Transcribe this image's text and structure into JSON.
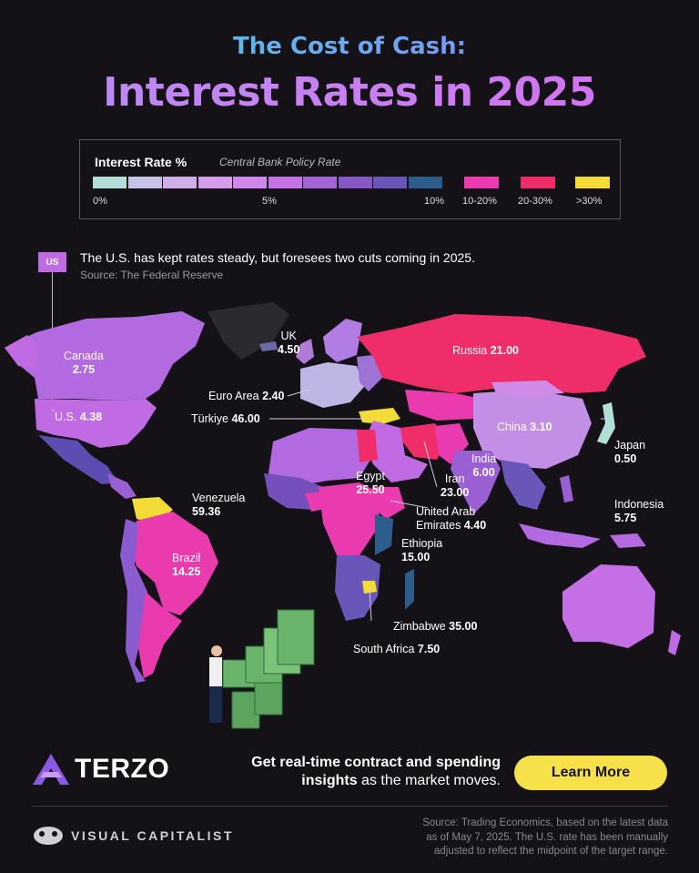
{
  "title": {
    "line1": "The Cost of Cash:",
    "line2": "Interest Rates in 2025"
  },
  "legend": {
    "title": "Interest Rate %",
    "subtitle": "Central Bank Policy Rate",
    "scale_colors": [
      "#b4dfd8",
      "#c6c3e6",
      "#cfaee9",
      "#d59cec",
      "#d087ec",
      "#c472e6",
      "#a565d7",
      "#8757c5",
      "#6a56b8",
      "#2c5d8c"
    ],
    "ticks": [
      "0%",
      "5%",
      "10%"
    ],
    "categories": [
      {
        "label": "10-20%",
        "color": "#ea3bb0"
      },
      {
        "label": "20-30%",
        "color": "#ee2d69"
      },
      {
        "label": ">30%",
        "color": "#f4dc38"
      }
    ]
  },
  "note": {
    "tag": "US",
    "text": "The U.S. has kept rates steady, but foresees two cuts coming in 2025.",
    "source": "Source: The Federal Reserve"
  },
  "countries": [
    {
      "name": "Canada",
      "rate": "2.75"
    },
    {
      "name": "UK",
      "rate": "4.50"
    },
    {
      "name": "Russia",
      "rate": "21.00"
    },
    {
      "name": "Euro Area",
      "rate": "2.40"
    },
    {
      "name": "U.S.",
      "rate": "4.38"
    },
    {
      "name": "Türkiye",
      "rate": "46.00"
    },
    {
      "name": "China",
      "rate": "3.10"
    },
    {
      "name": "Japan",
      "rate": "0.50"
    },
    {
      "name": "India",
      "rate": "6.00"
    },
    {
      "name": "Egypt",
      "rate": "25.50"
    },
    {
      "name": "Iran",
      "rate": "23.00"
    },
    {
      "name": "Venezuela",
      "rate": "59.36"
    },
    {
      "name": "United Arab Emirates",
      "name_line1": "United Arab",
      "name_line2": "Emirates",
      "rate": "4.40"
    },
    {
      "name": "Indonesia",
      "rate": "5.75"
    },
    {
      "name": "Ethiopia",
      "rate": "15.00"
    },
    {
      "name": "Brazil",
      "rate": "14.25"
    },
    {
      "name": "Zimbabwe",
      "rate": "35.00"
    },
    {
      "name": "South Africa",
      "rate": "7.50"
    }
  ],
  "footer": {
    "brand": "TERZO",
    "cta_line1": "Get real-time contract and spending",
    "cta_line2_bold": "insights",
    "cta_line2_rest": " as the market moves.",
    "button": "Learn More",
    "publisher": "VISUAL CAPITALIST",
    "source_line1": "Source: Trading Economics, based on the latest data",
    "source_line2": "as of May 7, 2025. The U.S. rate has been manually",
    "source_line3": "adjusted to reflect the midpoint of the target range."
  }
}
